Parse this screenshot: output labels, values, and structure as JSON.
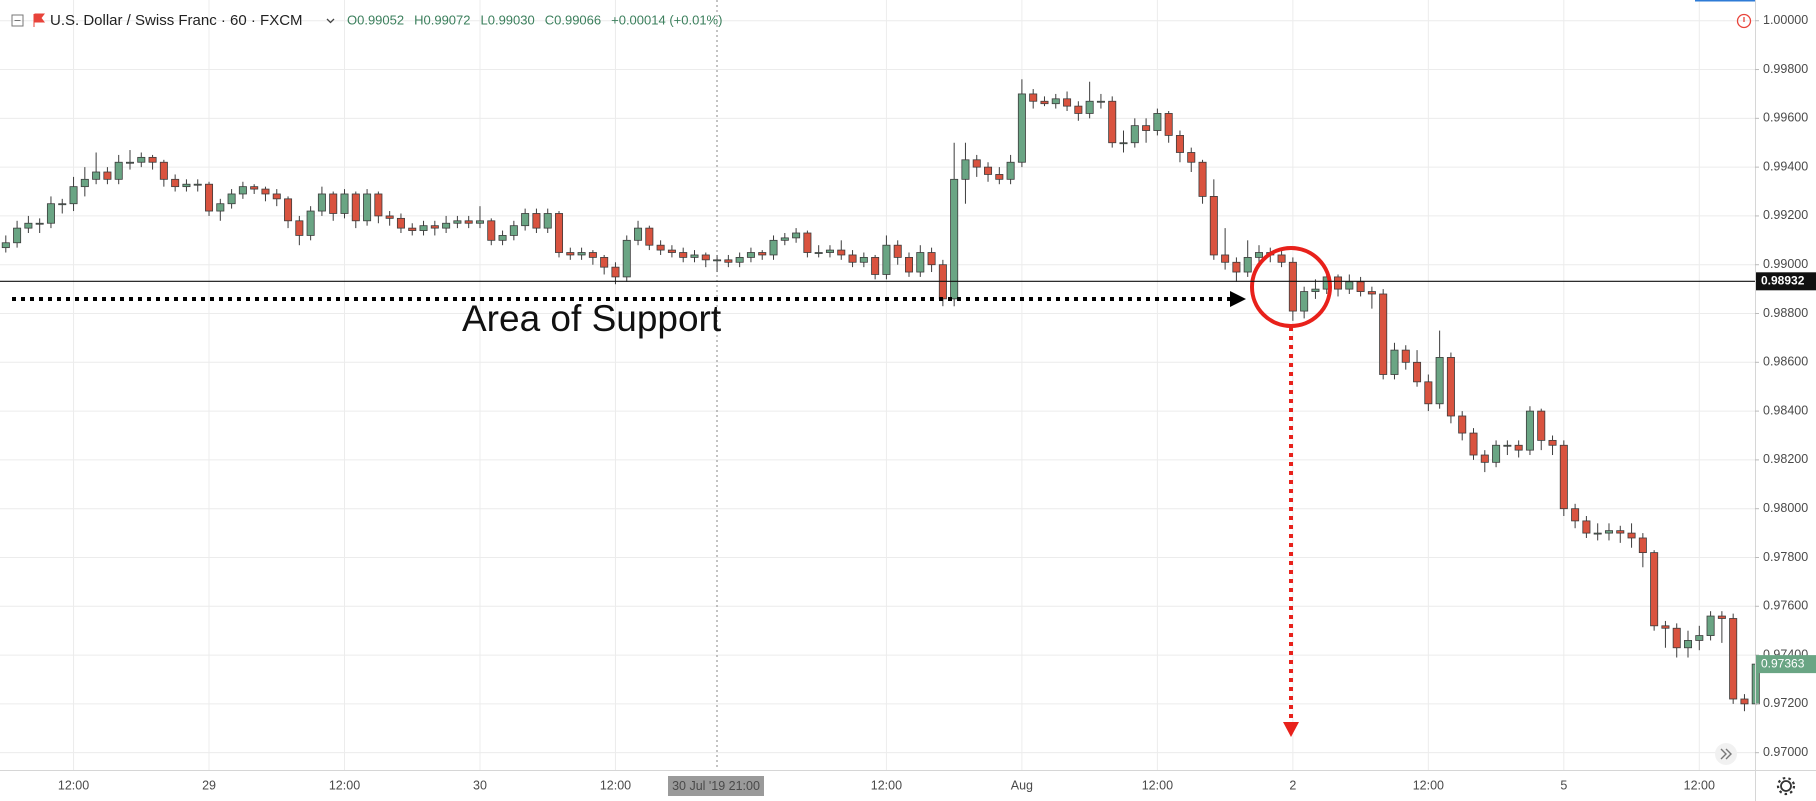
{
  "header": {
    "symbol": "U.S. Dollar / Swiss Franc · 60 · FXCM",
    "ohlc_text": [
      "O0.99052",
      "H0.99072",
      "L0.99030",
      "C0.99066",
      "+0.00014 (+0.01%)"
    ]
  },
  "chart_data": {
    "type": "candlestick",
    "up_color": "#6aa584",
    "down_color": "#d9533f",
    "wick_color": "#3c3c3c",
    "ylim": [
      0.96929,
      1.00085
    ],
    "yticks": [
      {
        "value": 0.97,
        "label": "0.97000"
      },
      {
        "value": 0.972,
        "label": "0.97200"
      },
      {
        "value": 0.974,
        "label": "0.97400"
      },
      {
        "value": 0.976,
        "label": "0.97600"
      },
      {
        "value": 0.978,
        "label": "0.97800"
      },
      {
        "value": 0.98,
        "label": "0.98000"
      },
      {
        "value": 0.982,
        "label": "0.98200"
      },
      {
        "value": 0.984,
        "label": "0.98400"
      },
      {
        "value": 0.986,
        "label": "0.98600"
      },
      {
        "value": 0.988,
        "label": "0.98800"
      },
      {
        "value": 0.99,
        "label": "0.99000"
      },
      {
        "value": 0.992,
        "label": "0.99200"
      },
      {
        "value": 0.994,
        "label": "0.99400"
      },
      {
        "value": 0.996,
        "label": "0.99600"
      },
      {
        "value": 0.998,
        "label": "0.99800"
      },
      {
        "value": 1.0,
        "label": "1.00000"
      }
    ],
    "grid": true,
    "categories": [
      null,
      null,
      null,
      null,
      null,
      null,
      "12:00",
      null,
      null,
      null,
      null,
      null,
      null,
      null,
      null,
      null,
      null,
      null,
      "29",
      null,
      null,
      null,
      null,
      null,
      null,
      null,
      null,
      null,
      null,
      null,
      "12:00",
      null,
      null,
      null,
      null,
      null,
      null,
      null,
      null,
      null,
      null,
      null,
      "30",
      null,
      null,
      null,
      null,
      null,
      null,
      null,
      null,
      null,
      null,
      null,
      "12:00",
      null,
      null,
      null,
      null,
      null,
      null,
      null,
      null,
      null,
      null,
      null,
      null,
      null,
      null,
      null,
      null,
      null,
      null,
      null,
      null,
      null,
      null,
      null,
      "12:00",
      null,
      null,
      null,
      null,
      null,
      null,
      null,
      null,
      null,
      null,
      null,
      "Aug",
      null,
      null,
      null,
      null,
      null,
      null,
      null,
      null,
      null,
      null,
      null,
      "12:00",
      null,
      null,
      null,
      null,
      null,
      null,
      null,
      null,
      null,
      null,
      null,
      "2",
      null,
      null,
      null,
      null,
      null,
      null,
      null,
      null,
      null,
      null,
      null,
      "12:00",
      null,
      null,
      null,
      null,
      null,
      null,
      null,
      null,
      null,
      null,
      null,
      "5",
      null,
      null,
      null,
      null,
      null,
      null,
      null,
      null,
      null,
      null,
      null,
      "12:00",
      null,
      null,
      null,
      null,
      null
    ],
    "candles": [
      [
        0.9907,
        0.9912,
        0.9905,
        0.9909
      ],
      [
        0.9909,
        0.9918,
        0.9907,
        0.9915
      ],
      [
        0.9915,
        0.992,
        0.9913,
        0.9917
      ],
      [
        0.9917,
        0.9919,
        0.9913,
        0.9917
      ],
      [
        0.9917,
        0.9928,
        0.9915,
        0.9925
      ],
      [
        0.9925,
        0.9927,
        0.9921,
        0.9925
      ],
      [
        0.9925,
        0.9936,
        0.9922,
        0.9932
      ],
      [
        0.9932,
        0.994,
        0.9928,
        0.9935
      ],
      [
        0.9935,
        0.9946,
        0.9933,
        0.9938
      ],
      [
        0.9938,
        0.994,
        0.9933,
        0.9935
      ],
      [
        0.9935,
        0.9945,
        0.9933,
        0.9942
      ],
      [
        0.9942,
        0.9947,
        0.9939,
        0.9942
      ],
      [
        0.9942,
        0.9946,
        0.994,
        0.9944
      ],
      [
        0.9944,
        0.9945,
        0.9939,
        0.9942
      ],
      [
        0.9942,
        0.9943,
        0.9932,
        0.9935
      ],
      [
        0.9935,
        0.9937,
        0.993,
        0.9932
      ],
      [
        0.9932,
        0.9935,
        0.993,
        0.9933
      ],
      [
        0.9933,
        0.9935,
        0.993,
        0.9933
      ],
      [
        0.9933,
        0.9934,
        0.992,
        0.9922
      ],
      [
        0.9922,
        0.9927,
        0.9918,
        0.9925
      ],
      [
        0.9925,
        0.9931,
        0.9923,
        0.9929
      ],
      [
        0.9929,
        0.9934,
        0.9927,
        0.9932
      ],
      [
        0.9932,
        0.9933,
        0.9929,
        0.9931
      ],
      [
        0.9931,
        0.9932,
        0.9926,
        0.9929
      ],
      [
        0.9929,
        0.9931,
        0.9924,
        0.9927
      ],
      [
        0.9927,
        0.9928,
        0.9915,
        0.9918
      ],
      [
        0.9918,
        0.992,
        0.9908,
        0.9912
      ],
      [
        0.9912,
        0.9924,
        0.991,
        0.9922
      ],
      [
        0.9922,
        0.9932,
        0.992,
        0.9929
      ],
      [
        0.9929,
        0.993,
        0.9918,
        0.9921
      ],
      [
        0.9921,
        0.9931,
        0.9919,
        0.9929
      ],
      [
        0.9929,
        0.993,
        0.9915,
        0.9918
      ],
      [
        0.9918,
        0.9931,
        0.9916,
        0.9929
      ],
      [
        0.9929,
        0.993,
        0.9917,
        0.992
      ],
      [
        0.992,
        0.9922,
        0.9916,
        0.9919
      ],
      [
        0.9919,
        0.9921,
        0.9913,
        0.9915
      ],
      [
        0.9915,
        0.9917,
        0.9912,
        0.9914
      ],
      [
        0.9914,
        0.9918,
        0.9912,
        0.9916
      ],
      [
        0.9916,
        0.9918,
        0.9912,
        0.9915
      ],
      [
        0.9915,
        0.992,
        0.9913,
        0.9917
      ],
      [
        0.9917,
        0.992,
        0.9915,
        0.9918
      ],
      [
        0.9918,
        0.992,
        0.9915,
        0.9917
      ],
      [
        0.9917,
        0.9924,
        0.9915,
        0.9918
      ],
      [
        0.9918,
        0.9919,
        0.9908,
        0.991
      ],
      [
        0.991,
        0.9914,
        0.9908,
        0.9912
      ],
      [
        0.9912,
        0.9918,
        0.991,
        0.9916
      ],
      [
        0.9916,
        0.9923,
        0.9914,
        0.9921
      ],
      [
        0.9921,
        0.9923,
        0.9913,
        0.9915
      ],
      [
        0.9915,
        0.9923,
        0.9913,
        0.9921
      ],
      [
        0.9921,
        0.9922,
        0.9903,
        0.9905
      ],
      [
        0.9905,
        0.9907,
        0.9902,
        0.9904
      ],
      [
        0.9904,
        0.9907,
        0.9902,
        0.9905
      ],
      [
        0.9905,
        0.9906,
        0.99,
        0.9903
      ],
      [
        0.9903,
        0.9904,
        0.9896,
        0.9899
      ],
      [
        0.9899,
        0.9901,
        0.9892,
        0.9895
      ],
      [
        0.9895,
        0.9912,
        0.9893,
        0.991
      ],
      [
        0.991,
        0.9918,
        0.9908,
        0.9915
      ],
      [
        0.9915,
        0.9916,
        0.9906,
        0.9908
      ],
      [
        0.9908,
        0.991,
        0.9904,
        0.9906
      ],
      [
        0.9906,
        0.9908,
        0.9903,
        0.9905
      ],
      [
        0.9905,
        0.9907,
        0.9901,
        0.9903
      ],
      [
        0.9903,
        0.9906,
        0.9901,
        0.9904
      ],
      [
        0.9904,
        0.9905,
        0.9899,
        0.9902
      ],
      [
        0.9902,
        0.9904,
        0.9897,
        0.9902
      ],
      [
        0.9902,
        0.9904,
        0.9899,
        0.9901
      ],
      [
        0.9901,
        0.9905,
        0.9899,
        0.9903
      ],
      [
        0.9903,
        0.9907,
        0.9901,
        0.9905
      ],
      [
        0.9905,
        0.9906,
        0.9902,
        0.9904
      ],
      [
        0.9904,
        0.9912,
        0.9902,
        0.991
      ],
      [
        0.991,
        0.9913,
        0.9908,
        0.9911
      ],
      [
        0.9911,
        0.9915,
        0.9909,
        0.9913
      ],
      [
        0.9913,
        0.9914,
        0.9903,
        0.9905
      ],
      [
        0.9905,
        0.9908,
        0.9903,
        0.9905
      ],
      [
        0.9905,
        0.9908,
        0.9903,
        0.9906
      ],
      [
        0.9906,
        0.991,
        0.9902,
        0.9904
      ],
      [
        0.9904,
        0.9906,
        0.9899,
        0.9901
      ],
      [
        0.9901,
        0.9905,
        0.9899,
        0.9903
      ],
      [
        0.9903,
        0.9904,
        0.9894,
        0.9896
      ],
      [
        0.9896,
        0.9912,
        0.9894,
        0.9908
      ],
      [
        0.9908,
        0.991,
        0.99,
        0.9903
      ],
      [
        0.9903,
        0.9905,
        0.9895,
        0.9897
      ],
      [
        0.9897,
        0.9908,
        0.9895,
        0.9905
      ],
      [
        0.9905,
        0.9907,
        0.9897,
        0.99
      ],
      [
        0.99,
        0.9902,
        0.9883,
        0.9886
      ],
      [
        0.9886,
        0.995,
        0.9883,
        0.9935
      ],
      [
        0.9935,
        0.995,
        0.9925,
        0.9943
      ],
      [
        0.9943,
        0.9945,
        0.9936,
        0.994
      ],
      [
        0.994,
        0.9942,
        0.9934,
        0.9937
      ],
      [
        0.9937,
        0.994,
        0.9933,
        0.9935
      ],
      [
        0.9935,
        0.9945,
        0.9933,
        0.9942
      ],
      [
        0.9942,
        0.9976,
        0.994,
        0.997
      ],
      [
        0.997,
        0.9972,
        0.9964,
        0.9967
      ],
      [
        0.9967,
        0.9969,
        0.9965,
        0.9966
      ],
      [
        0.9966,
        0.997,
        0.9964,
        0.9968
      ],
      [
        0.9968,
        0.9971,
        0.9963,
        0.9965
      ],
      [
        0.9965,
        0.9967,
        0.9959,
        0.9962
      ],
      [
        0.9962,
        0.9975,
        0.996,
        0.9967
      ],
      [
        0.9967,
        0.997,
        0.9964,
        0.9967
      ],
      [
        0.9967,
        0.9969,
        0.9948,
        0.995
      ],
      [
        0.995,
        0.9955,
        0.9946,
        0.995
      ],
      [
        0.995,
        0.996,
        0.9948,
        0.9957
      ],
      [
        0.9957,
        0.996,
        0.995,
        0.9955
      ],
      [
        0.9955,
        0.9964,
        0.9953,
        0.9962
      ],
      [
        0.9962,
        0.9963,
        0.995,
        0.9953
      ],
      [
        0.9953,
        0.9955,
        0.9942,
        0.9946
      ],
      [
        0.9946,
        0.9948,
        0.9938,
        0.9942
      ],
      [
        0.9942,
        0.9943,
        0.9925,
        0.9928
      ],
      [
        0.9928,
        0.9935,
        0.9902,
        0.9904
      ],
      [
        0.9904,
        0.9915,
        0.9898,
        0.9901
      ],
      [
        0.9901,
        0.9903,
        0.9893,
        0.9897
      ],
      [
        0.9897,
        0.991,
        0.9895,
        0.9903
      ],
      [
        0.9903,
        0.9908,
        0.99,
        0.9905
      ],
      [
        0.9905,
        0.9907,
        0.9901,
        0.9904
      ],
      [
        0.9904,
        0.9906,
        0.9899,
        0.9901
      ],
      [
        0.9901,
        0.9903,
        0.9877,
        0.9881
      ],
      [
        0.9881,
        0.9891,
        0.9878,
        0.9889
      ],
      [
        0.9889,
        0.9894,
        0.9886,
        0.989
      ],
      [
        0.989,
        0.9897,
        0.9888,
        0.9895
      ],
      [
        0.9895,
        0.9896,
        0.9887,
        0.989
      ],
      [
        0.989,
        0.9896,
        0.9888,
        0.9893
      ],
      [
        0.9893,
        0.9895,
        0.9887,
        0.9889
      ],
      [
        0.9889,
        0.9891,
        0.9882,
        0.9888
      ],
      [
        0.9888,
        0.989,
        0.9853,
        0.9855
      ],
      [
        0.9855,
        0.9868,
        0.9853,
        0.9865
      ],
      [
        0.9865,
        0.9867,
        0.9857,
        0.986
      ],
      [
        0.986,
        0.9865,
        0.985,
        0.9852
      ],
      [
        0.9852,
        0.9855,
        0.984,
        0.9843
      ],
      [
        0.9843,
        0.9873,
        0.9841,
        0.9862
      ],
      [
        0.9862,
        0.9864,
        0.9835,
        0.9838
      ],
      [
        0.9838,
        0.984,
        0.9828,
        0.9831
      ],
      [
        0.9831,
        0.9833,
        0.982,
        0.9822
      ],
      [
        0.9822,
        0.9824,
        0.9815,
        0.9819
      ],
      [
        0.9819,
        0.9828,
        0.9817,
        0.9826
      ],
      [
        0.9826,
        0.9828,
        0.9822,
        0.9826
      ],
      [
        0.9826,
        0.9828,
        0.9821,
        0.9824
      ],
      [
        0.9824,
        0.9842,
        0.9822,
        0.984
      ],
      [
        0.984,
        0.9841,
        0.9824,
        0.9828
      ],
      [
        0.9828,
        0.983,
        0.9822,
        0.9826
      ],
      [
        0.9826,
        0.9828,
        0.9797,
        0.98
      ],
      [
        0.98,
        0.9802,
        0.9792,
        0.9795
      ],
      [
        0.9795,
        0.9797,
        0.9788,
        0.979
      ],
      [
        0.979,
        0.9794,
        0.9787,
        0.979
      ],
      [
        0.979,
        0.9794,
        0.9787,
        0.9791
      ],
      [
        0.9791,
        0.9793,
        0.9786,
        0.979
      ],
      [
        0.979,
        0.9794,
        0.9784,
        0.9788
      ],
      [
        0.9788,
        0.979,
        0.9776,
        0.9782
      ],
      [
        0.9782,
        0.9783,
        0.975,
        0.9752
      ],
      [
        0.9752,
        0.9754,
        0.9743,
        0.9751
      ],
      [
        0.9751,
        0.9753,
        0.9739,
        0.9743
      ],
      [
        0.9743,
        0.975,
        0.9739,
        0.9746
      ],
      [
        0.9746,
        0.9752,
        0.9742,
        0.9748
      ],
      [
        0.9748,
        0.9758,
        0.9746,
        0.9756
      ],
      [
        0.9756,
        0.9758,
        0.9745,
        0.9755
      ],
      [
        0.9755,
        0.9757,
        0.972,
        0.9722
      ],
      [
        0.9722,
        0.9724,
        0.9717,
        0.972
      ],
      [
        0.972,
        0.97375,
        0.97195,
        0.97363
      ]
    ],
    "horizontal_line": {
      "value": 0.98932,
      "label": "0.98932"
    },
    "last_price": {
      "value": 0.97363,
      "label": "0.97363"
    },
    "crosshair_label": "30 Jul '19   21:00",
    "annotation": "Area of Support"
  }
}
